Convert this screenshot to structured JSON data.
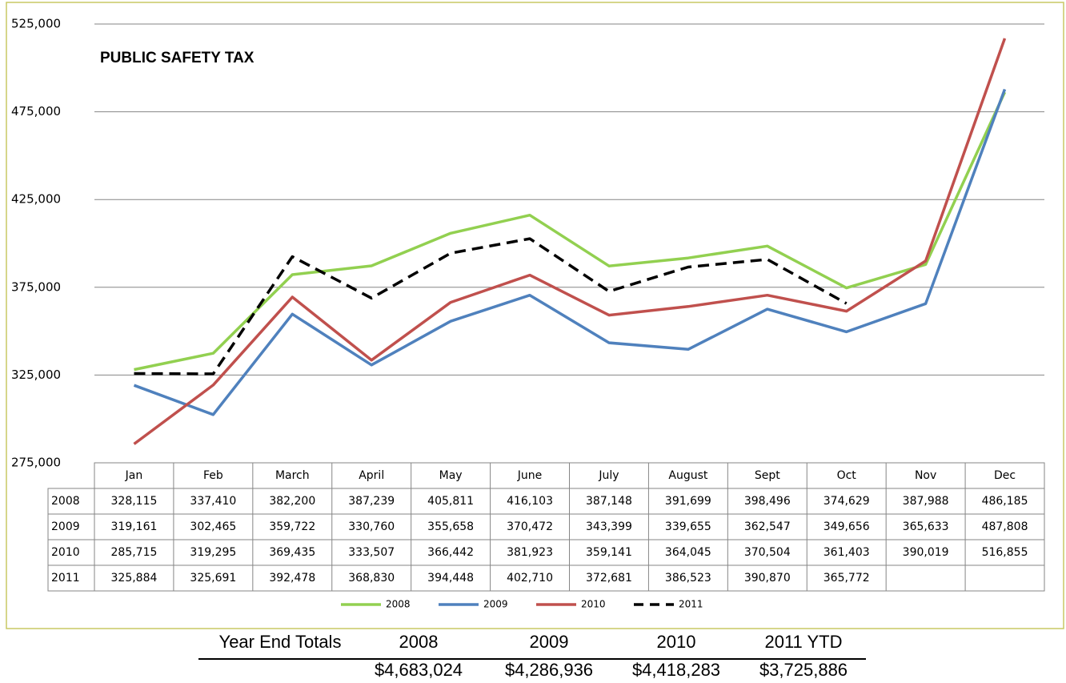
{
  "chart_data": {
    "type": "line",
    "title": "PUBLIC SAFETY TAX",
    "categories": [
      "Jan",
      "Feb",
      "March",
      "April",
      "May",
      "June",
      "July",
      "August",
      "Sept",
      "Oct",
      "Nov",
      "Dec"
    ],
    "series": [
      {
        "name": "2008",
        "color": "#92d050",
        "dashed": false,
        "values": [
          328115,
          337410,
          382200,
          387239,
          405811,
          416103,
          387148,
          391699,
          398496,
          374629,
          387988,
          486185
        ],
        "value_labels": [
          "328,115",
          "337,410",
          "382,200",
          "387,239",
          "405,811",
          "416,103",
          "387,148",
          "391,699",
          "398,496",
          "374,629",
          "387,988",
          "486,185"
        ]
      },
      {
        "name": "2009",
        "color": "#4f81bd",
        "dashed": false,
        "values": [
          319161,
          302465,
          359722,
          330760,
          355658,
          370472,
          343399,
          339655,
          362547,
          349656,
          365633,
          487808
        ],
        "value_labels": [
          "319,161",
          "302,465",
          "359,722",
          "330,760",
          "355,658",
          "370,472",
          "343,399",
          "339,655",
          "362,547",
          "349,656",
          "365,633",
          "487,808"
        ]
      },
      {
        "name": "2010",
        "color": "#c0504d",
        "dashed": false,
        "values": [
          285715,
          319295,
          369435,
          333507,
          366442,
          381923,
          359141,
          364045,
          370504,
          361403,
          390019,
          516855
        ],
        "value_labels": [
          "285,715",
          "319,295",
          "369,435",
          "333,507",
          "366,442",
          "381,923",
          "359,141",
          "364,045",
          "370,504",
          "361,403",
          "390,019",
          "516,855"
        ]
      },
      {
        "name": "2011",
        "color": "#000000",
        "dashed": true,
        "values": [
          325884,
          325691,
          392478,
          368830,
          394448,
          402710,
          372681,
          386523,
          390870,
          365772,
          null,
          null
        ],
        "value_labels": [
          "325,884",
          "325,691",
          "392,478",
          "368,830",
          "394,448",
          "402,710",
          "372,681",
          "386,523",
          "390,870",
          "365,772",
          null,
          null
        ]
      }
    ],
    "ylim": [
      275000,
      525000
    ],
    "yticks": [
      {
        "value": 275000,
        "label": "275,000"
      },
      {
        "value": 325000,
        "label": "325,000"
      },
      {
        "value": 375000,
        "label": "375,000"
      },
      {
        "value": 425000,
        "label": "425,000"
      },
      {
        "value": 475000,
        "label": "475,000"
      },
      {
        "value": 525000,
        "label": "525,000"
      }
    ],
    "grid": true,
    "legend": "bottom"
  },
  "totals": {
    "title": "Year End Totals",
    "headers": [
      "2008",
      "2009",
      "2010",
      "2011 YTD"
    ],
    "values": [
      "$4,683,024",
      "$4,286,936",
      "$4,418,283",
      "$3,725,886"
    ]
  }
}
